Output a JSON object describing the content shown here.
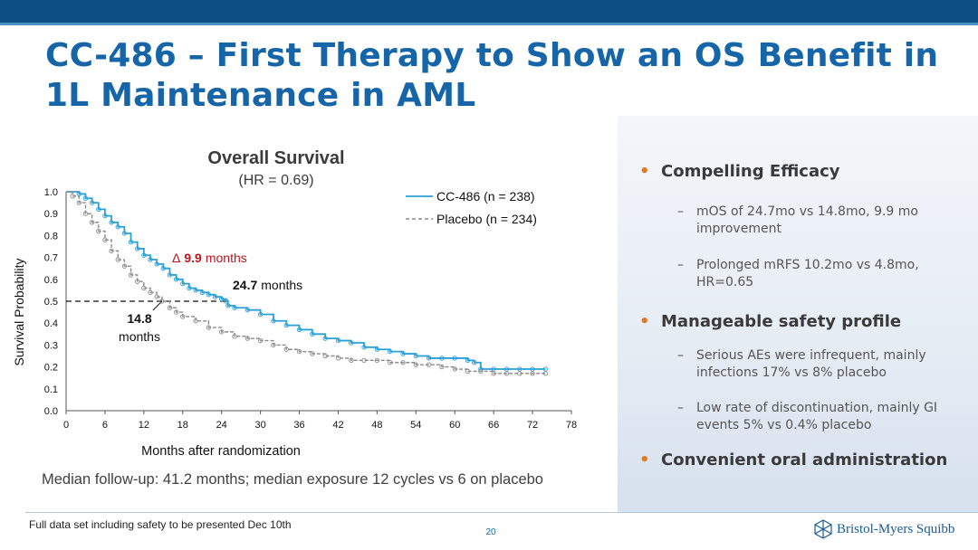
{
  "slide": {
    "title": "CC-486 – First Therapy to Show an OS Benefit in 1L Maintenance in AML",
    "footnote_median": "Median follow-up: 41.2 months; median exposure 12 cycles vs 6 on placebo",
    "footer_left": "Full data set including  safety to be presented Dec 10th",
    "page_number": "20",
    "logo_text": "Bristol-Myers Squibb"
  },
  "bullets": [
    {
      "label": "Compelling Efficacy",
      "subs": [
        "mOS of 24.7mo vs 14.8mo, 9.9 mo improvement",
        "Prolonged mRFS 10.2mo vs 4.8mo, HR=0.65"
      ]
    },
    {
      "label": "Manageable safety profile",
      "subs": [
        "Serious AEs were infrequent, mainly infections 17% vs 8% placebo",
        "Low rate of discontinuation, mainly GI events 5% vs 0.4% placebo"
      ]
    },
    {
      "label": "Convenient oral administration",
      "subs": []
    }
  ],
  "colors": {
    "brand": "#1565a8",
    "band": "#0c4f84",
    "cc486": "#2aa0d8",
    "placebo": "#8a8a8a",
    "delta": "#c0141b",
    "bullet": "#e07b24"
  },
  "chart_data": {
    "type": "line",
    "title": "Overall Survival",
    "subtitle": "(HR = 0.69)",
    "xlabel": "Months after randomization",
    "ylabel": "Survival Probability",
    "xlim": [
      0,
      78
    ],
    "ylim": [
      0,
      1.0
    ],
    "xticks": [
      0,
      6,
      12,
      18,
      24,
      30,
      36,
      42,
      48,
      54,
      60,
      66,
      72,
      78
    ],
    "yticks": [
      "0.0",
      "0.1",
      "0.2",
      "0.3",
      "0.4",
      "0.5",
      "0.6",
      "0.7",
      "0.8",
      "0.9",
      "1.0"
    ],
    "median_line": 0.5,
    "series": [
      {
        "name": "CC-486 (n = 238)",
        "color": "#2aa0d8",
        "style": "solid",
        "x": [
          0,
          2,
          3,
          4,
          5,
          6,
          7,
          8,
          9,
          10,
          11,
          12,
          13,
          14,
          15,
          16,
          17,
          18,
          19,
          20,
          21,
          22,
          23,
          24,
          24.7,
          25,
          26,
          28,
          30,
          32,
          34,
          36,
          38,
          40,
          42,
          44,
          46,
          48,
          50,
          52,
          54,
          56,
          58,
          60,
          62,
          63,
          64,
          66,
          68,
          70,
          72,
          74
        ],
        "y": [
          1.0,
          0.99,
          0.97,
          0.95,
          0.92,
          0.89,
          0.86,
          0.84,
          0.81,
          0.77,
          0.74,
          0.71,
          0.69,
          0.67,
          0.65,
          0.62,
          0.6,
          0.58,
          0.56,
          0.55,
          0.54,
          0.53,
          0.52,
          0.51,
          0.5,
          0.48,
          0.47,
          0.46,
          0.44,
          0.41,
          0.39,
          0.37,
          0.35,
          0.33,
          0.32,
          0.31,
          0.29,
          0.28,
          0.27,
          0.26,
          0.25,
          0.24,
          0.24,
          0.24,
          0.23,
          0.22,
          0.19,
          0.19,
          0.19,
          0.19,
          0.19,
          0.19
        ]
      },
      {
        "name": "Placebo (n = 234)",
        "color": "#8a8a8a",
        "style": "dashed",
        "x": [
          0,
          1,
          2,
          3,
          4,
          5,
          6,
          7,
          8,
          9,
          10,
          11,
          12,
          13,
          14,
          14.8,
          16,
          17,
          18,
          20,
          22,
          24,
          26,
          28,
          30,
          32,
          34,
          36,
          38,
          40,
          42,
          44,
          46,
          48,
          50,
          52,
          54,
          56,
          58,
          60,
          62,
          64,
          66,
          68,
          70,
          72,
          74
        ],
        "y": [
          1.0,
          0.98,
          0.95,
          0.9,
          0.86,
          0.82,
          0.78,
          0.73,
          0.69,
          0.66,
          0.62,
          0.59,
          0.56,
          0.54,
          0.52,
          0.5,
          0.47,
          0.45,
          0.43,
          0.41,
          0.38,
          0.36,
          0.34,
          0.33,
          0.32,
          0.3,
          0.28,
          0.27,
          0.26,
          0.25,
          0.24,
          0.23,
          0.23,
          0.23,
          0.22,
          0.22,
          0.21,
          0.21,
          0.2,
          0.19,
          0.18,
          0.18,
          0.17,
          0.17,
          0.17,
          0.17,
          0.17
        ]
      }
    ],
    "annotations": {
      "delta_symbol": "Δ",
      "delta_value": "9.9",
      "delta_unit": "months",
      "cc486_median_value": "24.7",
      "cc486_median_unit": "months",
      "placebo_median_value": "14.8",
      "placebo_median_unit": "months"
    }
  }
}
